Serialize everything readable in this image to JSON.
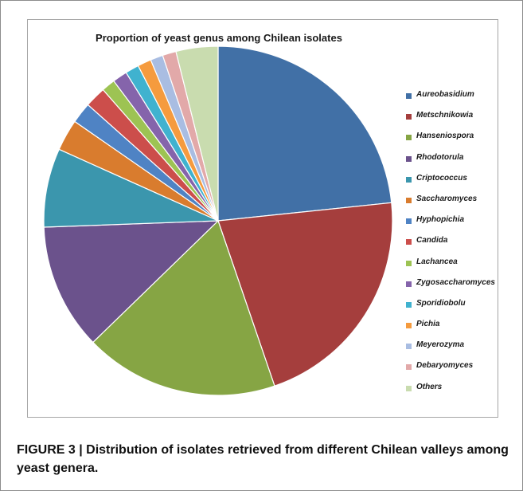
{
  "chart_data": {
    "type": "pie",
    "title": "Proportion of yeast genus among Chilean isolates",
    "categories": [
      "Aureobasidium",
      "Metschnikowia",
      "Hanseniospora",
      "Rhodotorula",
      "Criptococcus",
      "Saccharomyces",
      "Hyphopichia",
      "Candida",
      "Lachancea",
      "Zygosaccharomyces",
      "Sporidiobolu",
      "Pichia",
      "Meyerozyma",
      "Debaryomyces",
      "Others"
    ],
    "values": [
      24.0,
      22.0,
      18.5,
      12.0,
      7.5,
      3.0,
      2.0,
      2.0,
      1.3,
      1.4,
      1.3,
      1.3,
      1.2,
      1.3,
      4.0
    ],
    "colors": [
      "#4170a6",
      "#a53e3d",
      "#86a544",
      "#6b528c",
      "#3b96ad",
      "#d97c2e",
      "#4f83c4",
      "#cc4e4b",
      "#9dc353",
      "#8564ab",
      "#40b2cf",
      "#f59b3e",
      "#a9bde2",
      "#e2a9a9",
      "#c9dcaf"
    ],
    "legend_position": "right"
  },
  "figure": {
    "caption": "FIGURE 3 | Distribution of isolates retrieved from different Chilean valleys among yeast genera."
  }
}
